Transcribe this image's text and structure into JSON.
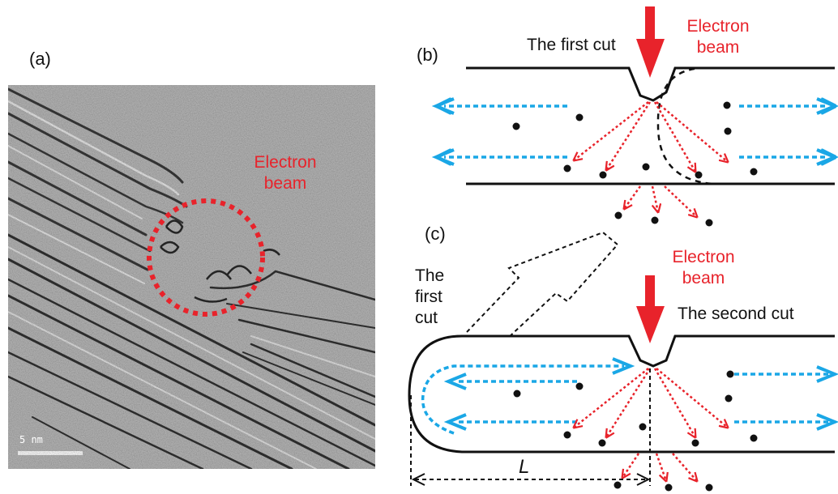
{
  "panel_a": {
    "label": "(a)",
    "beam_label_line1": "Electron",
    "beam_label_line2": "beam",
    "scale_bar_label": "5 nm"
  },
  "panel_b": {
    "label": "(b)",
    "cut_label": "The first cut",
    "beam_label_line1": "Electron",
    "beam_label_line2": "beam"
  },
  "panel_c": {
    "label": "(c)",
    "first_cut_line1": "The",
    "first_cut_line2": "first",
    "first_cut_line3": "cut",
    "beam_label_line1": "Electron",
    "beam_label_line2": "beam",
    "second_cut_label": "The second cut",
    "length_label": "L"
  },
  "colors": {
    "red": "#e8232b",
    "cyan": "#1aa7e6",
    "black": "#111111"
  }
}
